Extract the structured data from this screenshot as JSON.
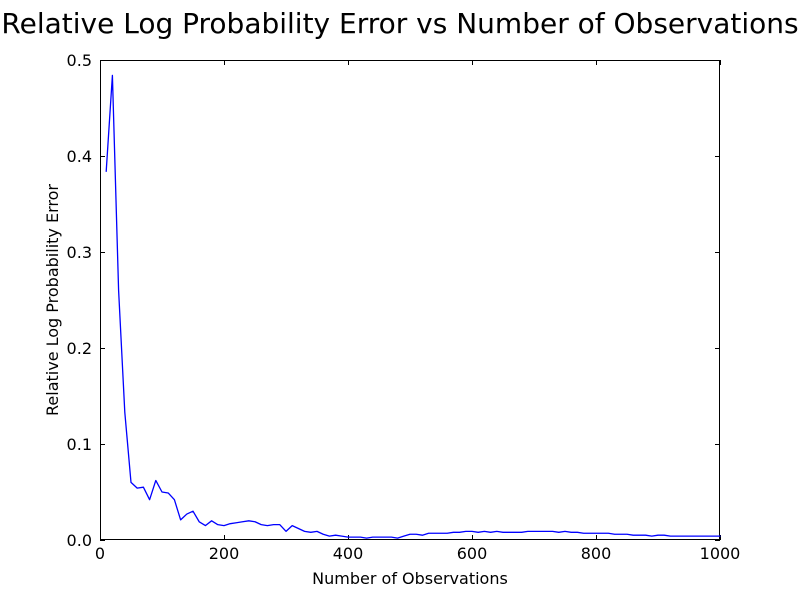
{
  "chart_data": {
    "type": "line",
    "title": "Relative Log Probability Error vs Number of Observations",
    "xlabel": "Number of Observations",
    "ylabel": "Relative Log Probability Error",
    "xlim": [
      0,
      1000
    ],
    "ylim": [
      0.0,
      0.5
    ],
    "xticks": [
      0,
      200,
      400,
      600,
      800,
      1000
    ],
    "xtick_labels": [
      "0",
      "200",
      "400",
      "600",
      "800",
      "1000"
    ],
    "yticks": [
      0.0,
      0.1,
      0.2,
      0.3,
      0.4,
      0.5
    ],
    "ytick_labels": [
      "0.0",
      "0.1",
      "0.2",
      "0.3",
      "0.4",
      "0.5"
    ],
    "grid": false,
    "legend": "none",
    "series": [
      {
        "color": "#0000ff",
        "x": [
          10,
          20,
          30,
          40,
          50,
          60,
          70,
          80,
          90,
          100,
          110,
          120,
          130,
          140,
          150,
          160,
          170,
          180,
          190,
          200,
          210,
          220,
          230,
          240,
          250,
          260,
          270,
          280,
          290,
          300,
          310,
          320,
          330,
          340,
          350,
          360,
          370,
          380,
          390,
          400,
          410,
          420,
          430,
          440,
          450,
          460,
          470,
          480,
          490,
          500,
          510,
          520,
          530,
          540,
          550,
          560,
          570,
          580,
          590,
          600,
          610,
          620,
          630,
          640,
          650,
          660,
          670,
          680,
          690,
          700,
          710,
          720,
          730,
          740,
          750,
          760,
          770,
          780,
          790,
          800,
          810,
          820,
          830,
          840,
          850,
          860,
          870,
          880,
          890,
          900,
          910,
          920,
          930,
          940,
          950,
          960,
          970,
          980,
          990,
          1000
        ],
        "y": [
          0.384,
          0.484,
          0.26,
          0.133,
          0.06,
          0.054,
          0.055,
          0.042,
          0.062,
          0.05,
          0.049,
          0.042,
          0.021,
          0.027,
          0.03,
          0.019,
          0.015,
          0.02,
          0.016,
          0.015,
          0.017,
          0.018,
          0.019,
          0.02,
          0.019,
          0.016,
          0.015,
          0.016,
          0.016,
          0.009,
          0.015,
          0.012,
          0.009,
          0.008,
          0.009,
          0.006,
          0.004,
          0.005,
          0.004,
          0.003,
          0.003,
          0.003,
          0.002,
          0.003,
          0.003,
          0.003,
          0.003,
          0.002,
          0.004,
          0.006,
          0.006,
          0.005,
          0.007,
          0.007,
          0.007,
          0.007,
          0.008,
          0.008,
          0.009,
          0.009,
          0.008,
          0.009,
          0.008,
          0.009,
          0.008,
          0.008,
          0.008,
          0.008,
          0.009,
          0.009,
          0.009,
          0.009,
          0.009,
          0.008,
          0.009,
          0.008,
          0.008,
          0.007,
          0.007,
          0.007,
          0.007,
          0.007,
          0.006,
          0.006,
          0.006,
          0.005,
          0.005,
          0.005,
          0.004,
          0.005,
          0.005,
          0.004,
          0.004,
          0.004,
          0.004,
          0.004,
          0.004,
          0.004,
          0.004,
          0.004
        ]
      }
    ]
  }
}
